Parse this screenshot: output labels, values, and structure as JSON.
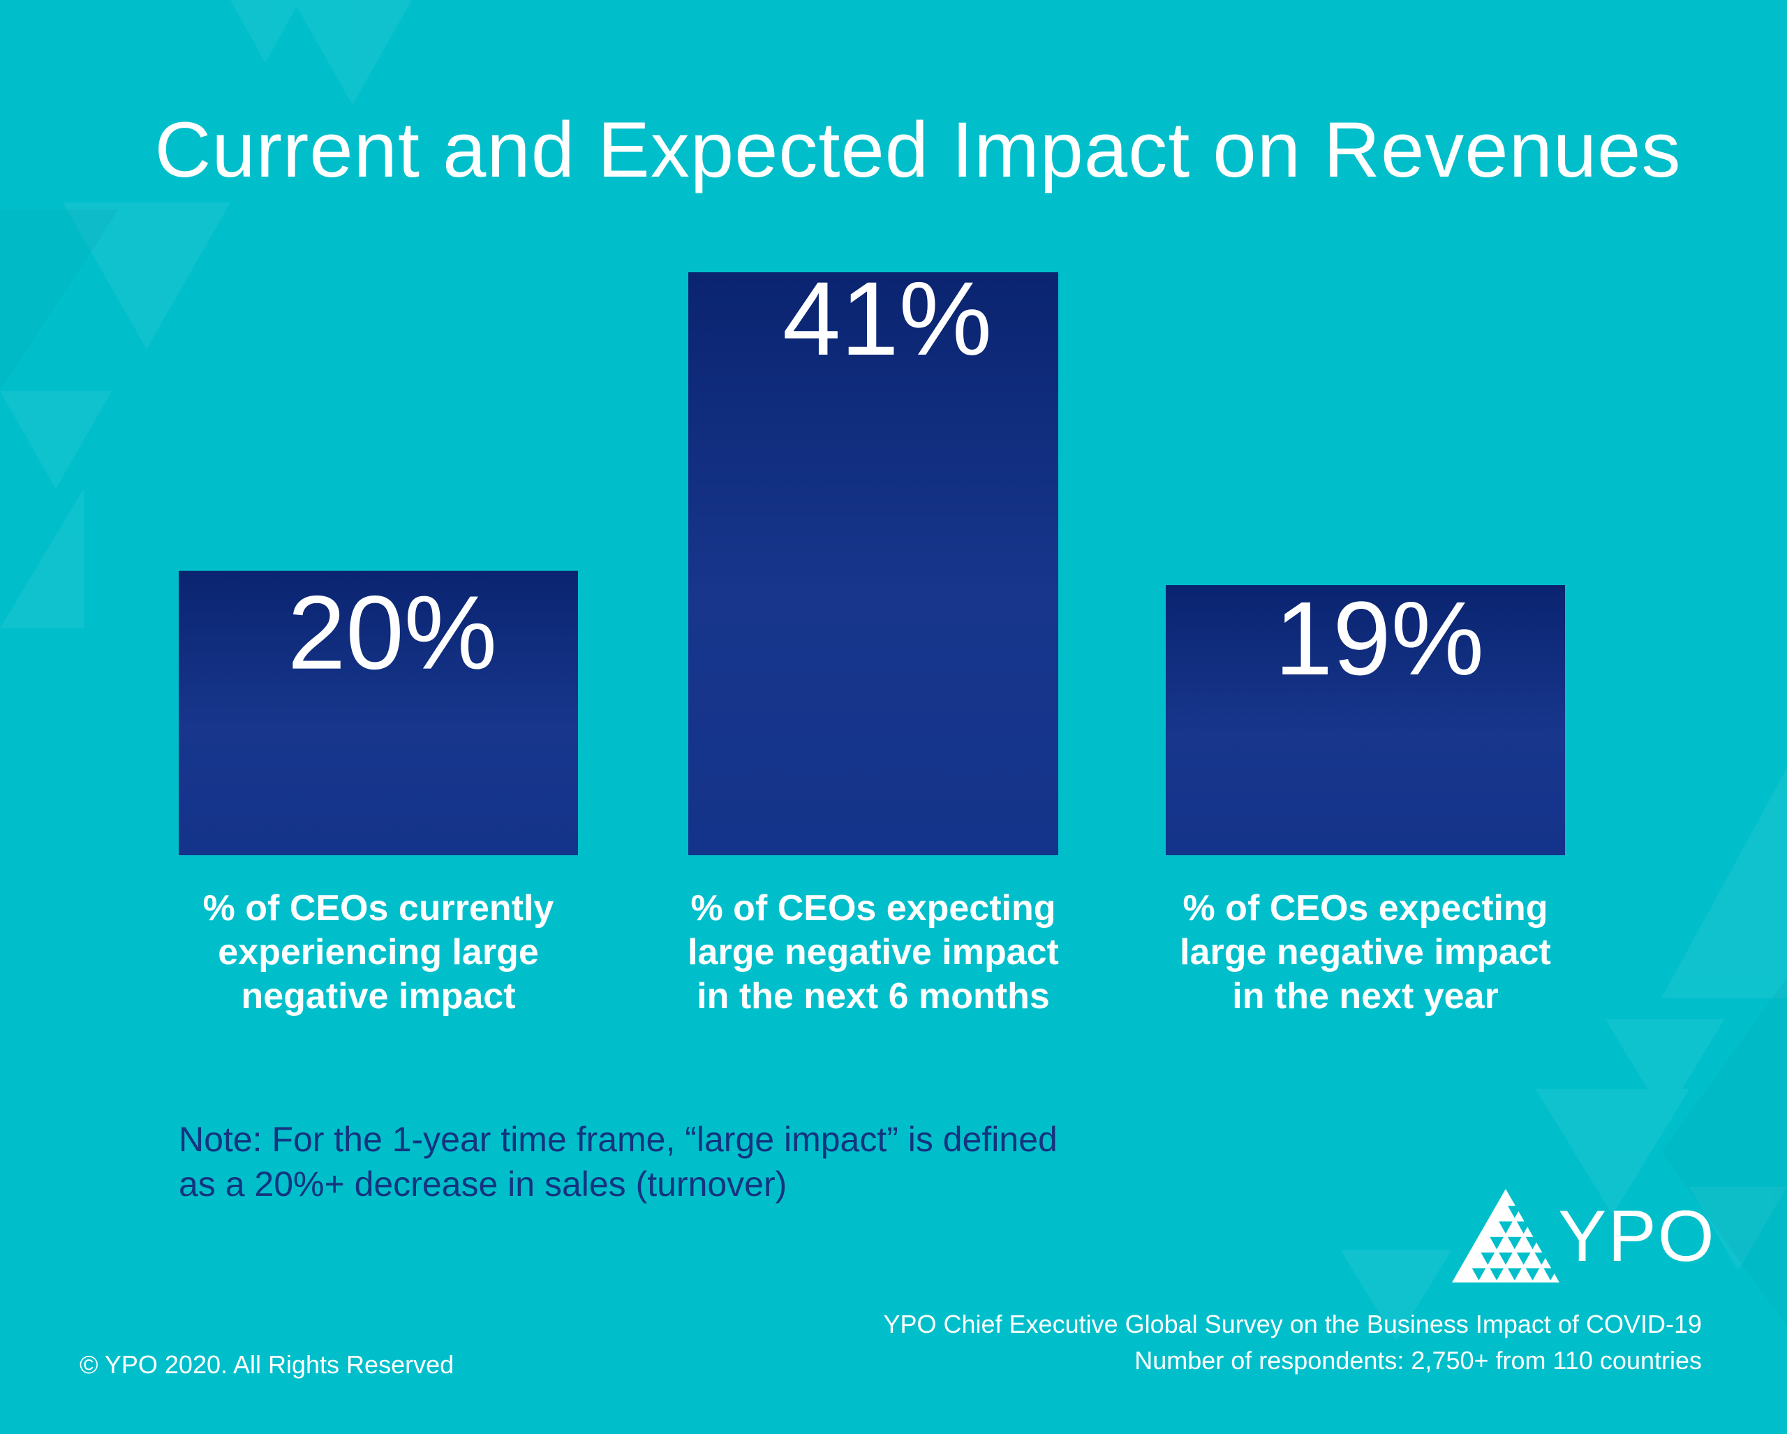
{
  "chart_data": {
    "type": "bar",
    "title": "Current and Expected Impact on Revenues",
    "categories": [
      "% of CEOs currently experiencing large negative impact",
      "% of CEOs expecting large negative impact in the next 6 months",
      "% of CEOs expecting large negative impact in the next year"
    ],
    "category_lines": [
      [
        "% of CEOs currently",
        "experiencing large",
        "negative impact"
      ],
      [
        "% of CEOs expecting",
        "large negative impact",
        "in the next 6 months"
      ],
      [
        "% of CEOs expecting",
        "large negative impact",
        "in the next year"
      ]
    ],
    "values": [
      20,
      41,
      19
    ],
    "value_labels": [
      "20%",
      "41%",
      "19%"
    ],
    "ylim": [
      0,
      41
    ],
    "grid": false,
    "legend": "none",
    "colors": {
      "bar_top": "#0a2470",
      "bar_bottom": "#14338a"
    }
  },
  "note": {
    "line1": "Note: For the 1-year time frame, “large impact” is defined",
    "line2": "as a 20%+ decrease in sales (turnover)"
  },
  "logo": {
    "text": "YPO",
    "icon": "ypo-triangle-logo-icon"
  },
  "source": {
    "line1": "YPO Chief Executive Global Survey on the Business Impact of COVID-19",
    "line2": "Number of respondents: 2,750+  from 110 countries"
  },
  "copyright": "© YPO 2020. All Rights Reserved",
  "colors": {
    "background": "#00bfcb",
    "text": "#ffffff",
    "note_text": "#14347f"
  }
}
